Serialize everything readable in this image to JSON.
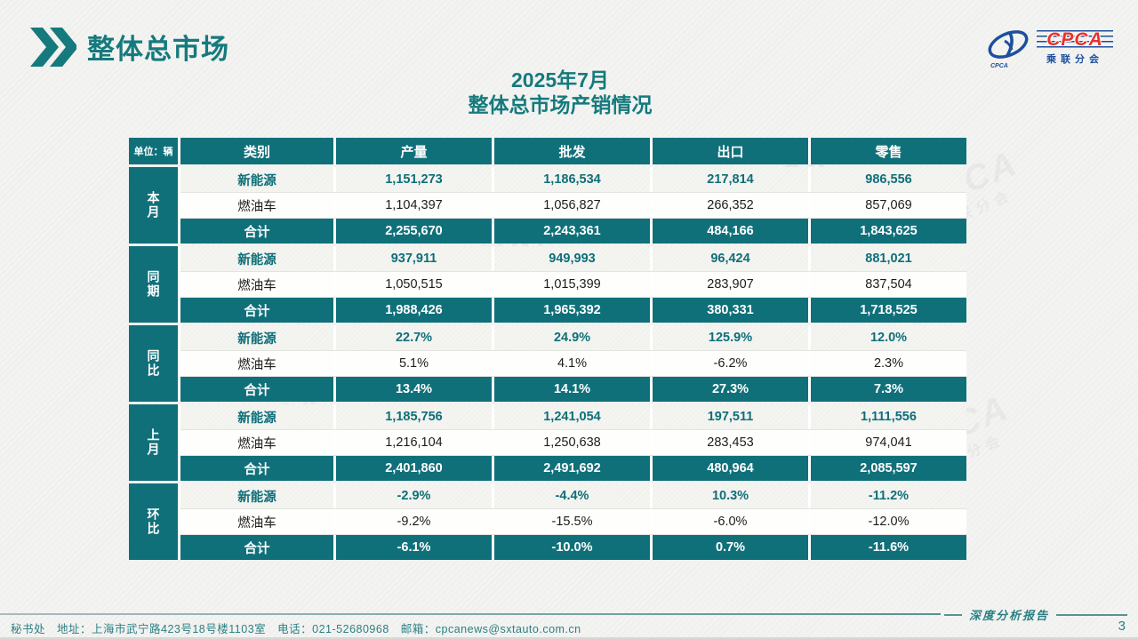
{
  "page": {
    "title": "整体总市场",
    "subtitle_line1": "2025年7月",
    "subtitle_line2": "整体总市场产销情况"
  },
  "logo": {
    "text": "CPCA",
    "subtext": "乘联分会",
    "mark_caption": "CPCA",
    "blue": "#1d4f9e",
    "red": "#e8332a"
  },
  "watermark": {
    "text": "CPCA",
    "subtext": "乘联分会"
  },
  "table": {
    "unit_label": "单位：辆",
    "columns": [
      "类别",
      "产量",
      "批发",
      "出口",
      "零售"
    ],
    "row_categories": [
      "新能源",
      "燃油车",
      "合计"
    ],
    "groups": [
      {
        "label": "本月",
        "rows": [
          {
            "category": "新能源",
            "values": [
              "1,151,273",
              "1,186,534",
              "217,814",
              "986,556"
            ]
          },
          {
            "category": "燃油车",
            "values": [
              "1,104,397",
              "1,056,827",
              "266,352",
              "857,069"
            ]
          },
          {
            "category": "合计",
            "values": [
              "2,255,670",
              "2,243,361",
              "484,166",
              "1,843,625"
            ]
          }
        ]
      },
      {
        "label": "同期",
        "rows": [
          {
            "category": "新能源",
            "values": [
              "937,911",
              "949,993",
              "96,424",
              "881,021"
            ]
          },
          {
            "category": "燃油车",
            "values": [
              "1,050,515",
              "1,015,399",
              "283,907",
              "837,504"
            ]
          },
          {
            "category": "合计",
            "values": [
              "1,988,426",
              "1,965,392",
              "380,331",
              "1,718,525"
            ]
          }
        ]
      },
      {
        "label": "同比",
        "rows": [
          {
            "category": "新能源",
            "values": [
              "22.7%",
              "24.9%",
              "125.9%",
              "12.0%"
            ]
          },
          {
            "category": "燃油车",
            "values": [
              "5.1%",
              "4.1%",
              "-6.2%",
              "2.3%"
            ]
          },
          {
            "category": "合计",
            "values": [
              "13.4%",
              "14.1%",
              "27.3%",
              "7.3%"
            ]
          }
        ]
      },
      {
        "label": "上月",
        "rows": [
          {
            "category": "新能源",
            "values": [
              "1,185,756",
              "1,241,054",
              "197,511",
              "1,111,556"
            ]
          },
          {
            "category": "燃油车",
            "values": [
              "1,216,104",
              "1,250,638",
              "283,453",
              "974,041"
            ]
          },
          {
            "category": "合计",
            "values": [
              "2,401,860",
              "2,491,692",
              "480,964",
              "2,085,597"
            ]
          }
        ]
      },
      {
        "label": "环比",
        "rows": [
          {
            "category": "新能源",
            "values": [
              "-2.9%",
              "-4.4%",
              "10.3%",
              "-11.2%"
            ]
          },
          {
            "category": "燃油车",
            "values": [
              "-9.2%",
              "-15.5%",
              "-6.0%",
              "-12.0%"
            ]
          },
          {
            "category": "合计",
            "values": [
              "-6.1%",
              "-10.0%",
              "0.7%",
              "-11.6%"
            ]
          }
        ]
      }
    ]
  },
  "footer": {
    "left_text": "秘书处　地址：上海市武宁路423号18号楼1103室　电话：021-52680968　邮箱：cpcanews@sxtauto.com.cn",
    "report_label": "深度分析报告",
    "page_number": "3"
  },
  "colors": {
    "teal_table": "#10707a",
    "teal_title": "#157a7d",
    "teal_footer": "#2b8084",
    "ev_text": "#0e6f79"
  }
}
